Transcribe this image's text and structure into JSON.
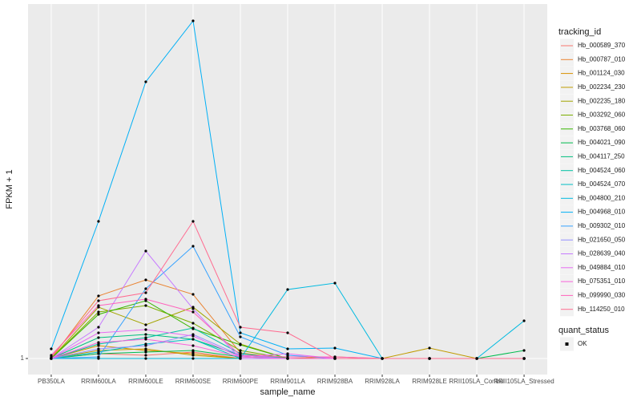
{
  "chart_data": {
    "type": "line",
    "x_label": "sample_name",
    "y_label": "FPKM + 1",
    "categories": [
      "PB350LA",
      "RRIM600LA",
      "RRIM600LE",
      "RRIM600SE",
      "RRIM600PE",
      "RRIM901LA",
      "RRIM928BA",
      "RRIM928LA",
      "RRIM928LE",
      "RRII105LA_Control",
      "RRII105LA_Stressed"
    ],
    "ylim": [
      0,
      23.1
    ],
    "yticks": [
      1
    ],
    "grid": true,
    "legend_title": "tracking_id",
    "legend_position": "right",
    "point_legend_title": "quant_status",
    "point_legend_entries": [
      "OK"
    ],
    "point_color": "#000000",
    "series": [
      {
        "name": "Hb_000589_370",
        "color": "#F8766D",
        "values": [
          1,
          1.3,
          1.2,
          1.4,
          1,
          1,
          1,
          1,
          1,
          1,
          1
        ]
      },
      {
        "name": "Hb_000787_010",
        "color": "#EA8331",
        "values": [
          1,
          4.9,
          5.9,
          5,
          1.35,
          1,
          1,
          1,
          1,
          1,
          1
        ]
      },
      {
        "name": "Hb_001124_030",
        "color": "#D89000",
        "values": [
          1,
          1.8,
          1.5,
          1.3,
          1,
          1,
          1.1,
          1,
          1,
          1,
          1
        ]
      },
      {
        "name": "Hb_002234_230",
        "color": "#C09B00",
        "values": [
          1,
          1.5,
          1.6,
          1.2,
          1,
          1,
          1,
          1,
          1.65,
          1,
          1
        ]
      },
      {
        "name": "Hb_002235_180",
        "color": "#A3A500",
        "values": [
          1,
          4.2,
          3.1,
          4.2,
          1.9,
          1,
          1,
          1,
          1,
          1,
          1
        ]
      },
      {
        "name": "Hb_003292_060",
        "color": "#7CAE00",
        "values": [
          1,
          3.9,
          4.3,
          3.2,
          1.5,
          1,
          1,
          1,
          1,
          1,
          1
        ]
      },
      {
        "name": "Hb_003768_060",
        "color": "#39B600",
        "values": [
          1,
          3.75,
          4.6,
          2.85,
          1.85,
          1,
          1,
          1,
          1,
          1,
          1
        ]
      },
      {
        "name": "Hb_004021_090",
        "color": "#00BB4E",
        "values": [
          1,
          1.3,
          1.4,
          1.5,
          1.1,
          1,
          1,
          1,
          1,
          1,
          1.5
        ]
      },
      {
        "name": "Hb_004117_250",
        "color": "#00BF7D",
        "values": [
          1,
          2.3,
          2.5,
          2.2,
          1.2,
          1,
          1,
          1,
          1,
          1,
          1
        ]
      },
      {
        "name": "Hb_004524_060",
        "color": "#00C1A3",
        "values": [
          1,
          1.9,
          2.3,
          2.9,
          1.3,
          1,
          1,
          1,
          1,
          1,
          1
        ]
      },
      {
        "name": "Hb_004524_070",
        "color": "#00BFC4",
        "values": [
          1,
          1.4,
          1.9,
          2.2,
          1,
          1,
          1,
          1,
          1,
          1,
          1
        ]
      },
      {
        "name": "Hb_004800_210",
        "color": "#00BAE0",
        "values": [
          1,
          1,
          1,
          1,
          1,
          5.3,
          5.7,
          1,
          1,
          1,
          3.35
        ]
      },
      {
        "name": "Hb_004968_010",
        "color": "#00B0F6",
        "values": [
          1.6,
          9.55,
          18.25,
          22.05,
          2.6,
          1.6,
          1.65,
          1,
          1,
          1,
          1
        ]
      },
      {
        "name": "Hb_009302_010",
        "color": "#35A2FF",
        "values": [
          1,
          1.1,
          5.35,
          8,
          2.35,
          1.2,
          1,
          1,
          1,
          1,
          1
        ]
      },
      {
        "name": "Hb_021650_050",
        "color": "#9590FF",
        "values": [
          1,
          1.6,
          1.8,
          2.5,
          1.2,
          1,
          1,
          1,
          1,
          1,
          1
        ]
      },
      {
        "name": "Hb_028639_040",
        "color": "#C77CFF",
        "values": [
          1,
          2.95,
          7.7,
          4.1,
          1,
          1,
          1,
          1,
          1,
          1,
          1
        ]
      },
      {
        "name": "Hb_049884_010",
        "color": "#E76BF3",
        "values": [
          1,
          2.6,
          2.8,
          2.4,
          1.1,
          1.3,
          1,
          1,
          1,
          1,
          1
        ]
      },
      {
        "name": "Hb_075351_010",
        "color": "#FA62DB",
        "values": [
          1,
          2,
          2.2,
          1.8,
          1.1,
          1,
          1,
          1,
          1,
          1,
          1
        ]
      },
      {
        "name": "Hb_099990_030",
        "color": "#FF62BC",
        "values": [
          1.2,
          4.3,
          4.7,
          3.9,
          1.2,
          1.1,
          1.1,
          1,
          1,
          1,
          1
        ]
      },
      {
        "name": "Hb_114250_010",
        "color": "#FF6C91",
        "values": [
          1.1,
          4.6,
          5.1,
          9.55,
          2.95,
          2.6,
          1,
          1,
          1,
          1,
          1
        ]
      }
    ]
  }
}
